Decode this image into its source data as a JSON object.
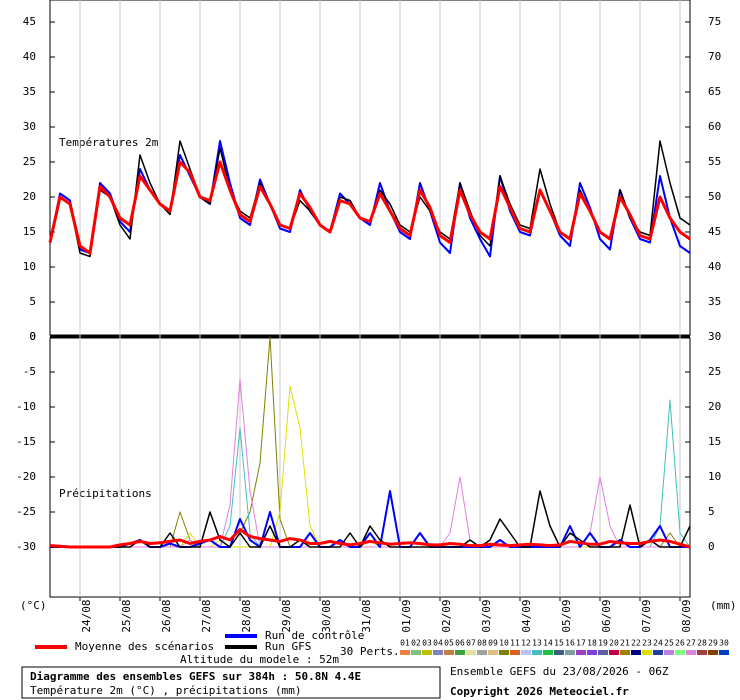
{
  "chart_data": {
    "type": "line",
    "title": "Diagramme des ensembles GEFS sur 384h : 50.8N 4.4E",
    "subtitle": "Température 2m (°C) , précipitations (mm)",
    "run": "Ensemble GEFS du 23/08/2026 - 06Z",
    "copyright": "Copyright 2026 Meteociel.fr",
    "altitude": "Altitude du modele : 52m",
    "perts_label": "30 Perts.",
    "y_unit": "(°C)",
    "y2_unit": "(mm)",
    "xlim": [
      0,
      384
    ],
    "x": [
      0,
      6,
      12,
      18,
      24,
      30,
      36,
      42,
      48,
      54,
      60,
      66,
      72,
      78,
      84,
      90,
      96,
      102,
      108,
      114,
      120,
      126,
      132,
      138,
      144,
      150,
      156,
      162,
      168,
      174,
      180,
      186,
      192,
      198,
      204,
      210,
      216,
      222,
      228,
      234,
      240,
      246,
      252,
      258,
      264,
      270,
      276,
      282,
      288,
      294,
      300,
      306,
      312,
      318,
      324,
      330,
      336,
      342,
      348,
      354,
      360,
      366,
      372,
      378,
      384
    ],
    "xticks": [
      {
        "value": 18,
        "label": "24/08"
      },
      {
        "value": 42,
        "label": "25/08"
      },
      {
        "value": 66,
        "label": "26/08"
      },
      {
        "value": 90,
        "label": "27/08"
      },
      {
        "value": 114,
        "label": "28/08"
      },
      {
        "value": 138,
        "label": "29/08"
      },
      {
        "value": 162,
        "label": "30/08"
      },
      {
        "value": 186,
        "label": "31/08"
      },
      {
        "value": 210,
        "label": "01/09"
      },
      {
        "value": 234,
        "label": "02/09"
      },
      {
        "value": 258,
        "label": "03/09"
      },
      {
        "value": 282,
        "label": "04/09"
      },
      {
        "value": 306,
        "label": "05/09"
      },
      {
        "value": 330,
        "label": "06/09"
      },
      {
        "value": 354,
        "label": "07/09"
      },
      {
        "value": 378,
        "label": "08/09"
      }
    ],
    "temperature": {
      "label": "Températures 2m",
      "ylim": [
        0,
        48
      ],
      "yticks": [
        0,
        5,
        10,
        15,
        20,
        25,
        30,
        35,
        40,
        45
      ],
      "y2lim": [
        30,
        78
      ],
      "y2ticks": [
        35,
        40,
        45,
        50,
        55,
        60,
        65,
        70,
        75
      ],
      "series": [
        {
          "name": "Run de contrôle",
          "color": "#0000ff",
          "values": [
            13.5,
            20.5,
            19.5,
            12.5,
            12,
            22,
            20.5,
            16.5,
            15,
            24,
            21,
            19,
            18,
            26,
            23,
            20,
            19,
            28,
            22,
            17,
            16,
            22.5,
            19,
            15.5,
            15,
            21,
            18,
            16,
            15,
            20.5,
            19,
            17,
            16,
            22,
            18,
            15,
            14,
            22,
            18,
            13.5,
            12,
            22,
            17,
            14,
            11.5,
            23,
            18,
            15,
            14.5,
            21,
            18,
            14.5,
            13,
            22,
            18.5,
            14,
            12.5,
            21,
            17,
            14,
            13.5,
            23,
            17,
            13,
            12
          ]
        },
        {
          "name": "Run GFS",
          "color": "#000000",
          "values": [
            13.5,
            20,
            19,
            12,
            11.5,
            21,
            20,
            16,
            14,
            26,
            22,
            19,
            17.5,
            28,
            24,
            20,
            19,
            27,
            21,
            18,
            17,
            22,
            19,
            16,
            15.5,
            19.5,
            18,
            16,
            15,
            20,
            19.5,
            17,
            16.5,
            21,
            19,
            16,
            15,
            20,
            18,
            15,
            14,
            22,
            18,
            14.5,
            13,
            23,
            19,
            16,
            15.5,
            24,
            19,
            15,
            14,
            21,
            18,
            15,
            14,
            21,
            17,
            15,
            14.5,
            28,
            22,
            17,
            16
          ]
        },
        {
          "name": "Moyenne des scénarios",
          "color": "#ff0000",
          "values": [
            13.5,
            20,
            19,
            13,
            12,
            21.5,
            20,
            17,
            16,
            23,
            21,
            19,
            18,
            25,
            23.5,
            20,
            19.5,
            25,
            21,
            17.5,
            16.5,
            21.5,
            19,
            16,
            15.5,
            20.5,
            18.5,
            16,
            15,
            19.5,
            19,
            17,
            16.5,
            20.5,
            18,
            15.5,
            14.5,
            21,
            18.5,
            14.5,
            13.5,
            21,
            17.5,
            15,
            14,
            21.5,
            18.5,
            15.5,
            15,
            21,
            18,
            15,
            14,
            20.5,
            18,
            15,
            14,
            20,
            17.5,
            14.5,
            14,
            20,
            17,
            15,
            14
          ]
        }
      ]
    },
    "precipitation": {
      "label": "Précipitations",
      "ylim": [
        -37,
        0
      ],
      "yticks": [
        0,
        -5,
        -10,
        -15,
        -20,
        -25,
        -30
      ],
      "y2lim": [
        -7,
        30
      ],
      "y2ticks": [
        30,
        25,
        20,
        15,
        10,
        5,
        0
      ],
      "series": [
        {
          "color": "#0000ff",
          "values": [
            0,
            0,
            0,
            0,
            0,
            0,
            0,
            0,
            0.5,
            1,
            0,
            0,
            0.5,
            0,
            0,
            0.5,
            1,
            0,
            0,
            4,
            1,
            0,
            5,
            0,
            0,
            0,
            2,
            0,
            0,
            1,
            0,
            0,
            2,
            0,
            8,
            0,
            0,
            2,
            0,
            0,
            0,
            0,
            0,
            0,
            0,
            1,
            0,
            0,
            0,
            0,
            0,
            0,
            3,
            0,
            2,
            0,
            0,
            1,
            0,
            0,
            1,
            3,
            0,
            0,
            0
          ]
        },
        {
          "color": "#000000",
          "values": [
            0,
            0,
            0,
            0,
            0,
            0,
            0,
            0,
            0,
            1,
            0,
            0,
            2,
            0,
            0,
            0,
            5,
            1,
            0,
            2,
            0,
            0,
            3,
            0,
            0,
            1,
            0,
            0,
            0,
            0,
            2,
            0,
            3,
            1,
            0,
            0,
            0,
            0,
            0,
            0,
            0,
            0,
            1,
            0,
            1,
            4,
            2,
            0,
            0,
            8,
            3,
            0,
            2,
            1,
            0,
            0,
            0,
            0,
            6,
            0,
            1,
            0,
            0,
            0,
            3
          ]
        },
        {
          "color": "#ff0000",
          "values": [
            0.2,
            0.1,
            0,
            0,
            0,
            0,
            0,
            0.3,
            0.5,
            0.8,
            0.5,
            0.6,
            0.8,
            1,
            0.5,
            0.8,
            1,
            1.5,
            1,
            2.5,
            1.5,
            1.2,
            1,
            0.8,
            1.2,
            1,
            0.5,
            0.5,
            0.8,
            0.5,
            0.3,
            0.5,
            0.8,
            0.6,
            0.4,
            0.5,
            0.6,
            0.5,
            0.3,
            0.3,
            0.5,
            0.4,
            0.2,
            0.2,
            0.4,
            0.3,
            0.2,
            0.3,
            0.4,
            0.3,
            0.2,
            0.3,
            0.8,
            0.6,
            0.4,
            0.4,
            0.8,
            0.6,
            0.5,
            0.5,
            0.8,
            1,
            0.8,
            0.4,
            0
          ]
        }
      ]
    },
    "perturbations": [
      {
        "name": "01",
        "color": "#f08040"
      },
      {
        "name": "02",
        "color": "#80c080"
      },
      {
        "name": "03",
        "color": "#c0c000"
      },
      {
        "name": "04",
        "color": "#8080c0"
      },
      {
        "name": "05",
        "color": "#c08040"
      },
      {
        "name": "06",
        "color": "#40a040"
      },
      {
        "name": "07",
        "color": "#e0e0a0"
      },
      {
        "name": "08",
        "color": "#a0a0a0"
      },
      {
        "name": "09",
        "color": "#e0c080"
      },
      {
        "name": "10",
        "color": "#808000",
        "precip": [
          0,
          0,
          0,
          0,
          0,
          0,
          0,
          0,
          0,
          0,
          0,
          0,
          0,
          5,
          1,
          0,
          0,
          0,
          0,
          2,
          5,
          12,
          30,
          4,
          0,
          0,
          0,
          0,
          0,
          0,
          0,
          0,
          1,
          0,
          0,
          0,
          0,
          0,
          0,
          0,
          0,
          0,
          0,
          0,
          0,
          0,
          0,
          0,
          0,
          0,
          0,
          0,
          0,
          0,
          0,
          0,
          0,
          0,
          0,
          0,
          0,
          0,
          2,
          0,
          0
        ]
      },
      {
        "name": "11",
        "color": "#e06020"
      },
      {
        "name": "12",
        "color": "#c0c0ff"
      },
      {
        "name": "13",
        "color": "#40c0c0",
        "precip": [
          0,
          0,
          0,
          0,
          0,
          0,
          0,
          0,
          0,
          0,
          0,
          0,
          0,
          0,
          0,
          0,
          0,
          0,
          3,
          17,
          2,
          0,
          0,
          0,
          0,
          0,
          0,
          0,
          0,
          0,
          0,
          0,
          0,
          0,
          0,
          0,
          0,
          0,
          0,
          0,
          0,
          0,
          0,
          0,
          0,
          0,
          0,
          0,
          0,
          0,
          0,
          0,
          0,
          0,
          0,
          0,
          0,
          0,
          0,
          0,
          0,
          3,
          21,
          2,
          0
        ]
      },
      {
        "name": "14",
        "color": "#20c040"
      },
      {
        "name": "15",
        "color": "#406080"
      },
      {
        "name": "16",
        "color": "#80a0a0"
      },
      {
        "name": "17",
        "color": "#a040c0"
      },
      {
        "name": "18",
        "color": "#8040e0"
      },
      {
        "name": "19",
        "color": "#6060a0"
      },
      {
        "name": "20",
        "color": "#c00040"
      },
      {
        "name": "21",
        "color": "#a08000"
      },
      {
        "name": "22",
        "color": "#000080"
      },
      {
        "name": "23",
        "color": "#e0e000",
        "precip": [
          0,
          0,
          0,
          0,
          0,
          0,
          0,
          0,
          0,
          0,
          0,
          0,
          0,
          0,
          2,
          0,
          0,
          1,
          0,
          0,
          0,
          0,
          0,
          5,
          23,
          17,
          3,
          0,
          0,
          0,
          0,
          0,
          0,
          0,
          0,
          0,
          0,
          0,
          0,
          0,
          0,
          0,
          0,
          0,
          0,
          0,
          0,
          0,
          0,
          0,
          0,
          0,
          0,
          0,
          0,
          0,
          0,
          0,
          0,
          0,
          0,
          0,
          0,
          0,
          0
        ]
      },
      {
        "name": "24",
        "color": "#2040a0"
      },
      {
        "name": "25",
        "color": "#c080e0"
      },
      {
        "name": "26",
        "color": "#80ff80"
      },
      {
        "name": "27",
        "color": "#e080e0",
        "precip": [
          0,
          0,
          0,
          0,
          0,
          0,
          0,
          0,
          0,
          0,
          0,
          0,
          0,
          0,
          1,
          0,
          0,
          0,
          6,
          24,
          8,
          0,
          0,
          0,
          0,
          0,
          0,
          0,
          0,
          0,
          0,
          0,
          0,
          0,
          0,
          0,
          0,
          0,
          0,
          0,
          2,
          10,
          1,
          0,
          0,
          0,
          0,
          0,
          0,
          0,
          0,
          0,
          0,
          0,
          2,
          10,
          3,
          0,
          0,
          0,
          0,
          0,
          0,
          0,
          0
        ]
      },
      {
        "name": "28",
        "color": "#a04040"
      },
      {
        "name": "29",
        "color": "#804000"
      },
      {
        "name": "30",
        "color": "#0040c0"
      }
    ]
  }
}
